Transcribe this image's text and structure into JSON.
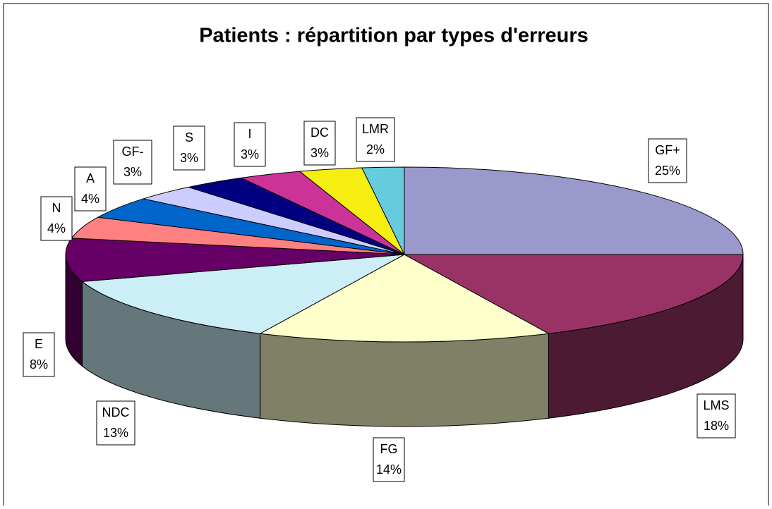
{
  "chart_data": {
    "type": "pie3d",
    "title": "Patients : répartition par types d'erreurs",
    "categories": [
      "GF+",
      "LMS",
      "FG",
      "NDC",
      "E",
      "N",
      "A",
      "GF-",
      "S",
      "I",
      "DC",
      "LMR"
    ],
    "values": [
      25,
      18,
      14,
      13,
      8,
      4,
      4,
      3,
      3,
      3,
      3,
      2
    ],
    "value_labels": [
      "25%",
      "18%",
      "14%",
      "13%",
      "8%",
      "4%",
      "4%",
      "3%",
      "3%",
      "3%",
      "3%",
      "2%"
    ],
    "colors": [
      "#9999cc",
      "#993366",
      "#ffffcc",
      "#cceef6",
      "#660066",
      "#ff8080",
      "#0066cc",
      "#ccccff",
      "#000080",
      "#cc3399",
      "#f5ee10",
      "#66ccdd"
    ]
  }
}
